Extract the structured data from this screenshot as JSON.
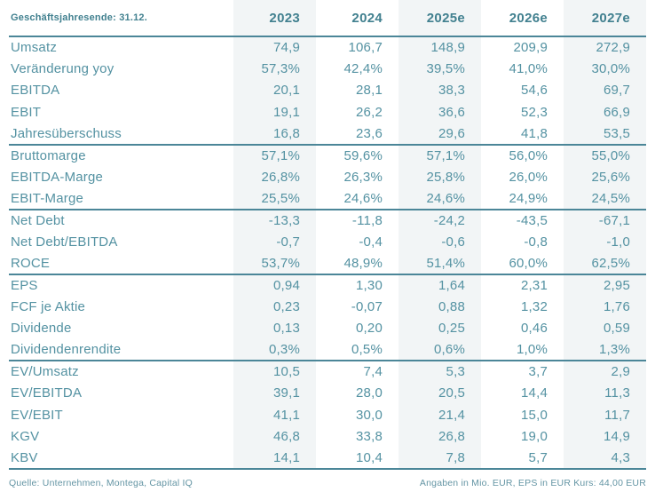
{
  "table": {
    "corner_label": "Geschäftsjahresende: 31.12.",
    "columns": [
      "2023",
      "2024",
      "2025e",
      "2026e",
      "2027e"
    ],
    "shaded_columns": [
      0,
      2,
      4
    ],
    "sections": [
      {
        "rows": [
          {
            "label": "Umsatz",
            "values": [
              "74,9",
              "106,7",
              "148,9",
              "209,9",
              "272,9"
            ]
          },
          {
            "label": "Veränderung yoy",
            "values": [
              "57,3%",
              "42,4%",
              "39,5%",
              "41,0%",
              "30,0%"
            ]
          },
          {
            "label": "EBITDA",
            "values": [
              "20,1",
              "28,1",
              "38,3",
              "54,6",
              "69,7"
            ]
          },
          {
            "label": "EBIT",
            "values": [
              "19,1",
              "26,2",
              "36,6",
              "52,3",
              "66,9"
            ]
          },
          {
            "label": "Jahresüberschuss",
            "values": [
              "16,8",
              "23,6",
              "29,6",
              "41,8",
              "53,5"
            ]
          }
        ]
      },
      {
        "rows": [
          {
            "label": "Bruttomarge",
            "values": [
              "57,1%",
              "59,6%",
              "57,1%",
              "56,0%",
              "55,0%"
            ]
          },
          {
            "label": "EBITDA-Marge",
            "values": [
              "26,8%",
              "26,3%",
              "25,8%",
              "26,0%",
              "25,6%"
            ]
          },
          {
            "label": "EBIT-Marge",
            "values": [
              "25,5%",
              "24,6%",
              "24,6%",
              "24,9%",
              "24,5%"
            ]
          }
        ]
      },
      {
        "rows": [
          {
            "label": "Net Debt",
            "values": [
              "-13,3",
              "-11,8",
              "-24,2",
              "-43,5",
              "-67,1"
            ]
          },
          {
            "label": "Net Debt/EBITDA",
            "values": [
              "-0,7",
              "-0,4",
              "-0,6",
              "-0,8",
              "-1,0"
            ]
          },
          {
            "label": "ROCE",
            "values": [
              "53,7%",
              "48,9%",
              "51,4%",
              "60,0%",
              "62,5%"
            ]
          }
        ]
      },
      {
        "rows": [
          {
            "label": "EPS",
            "values": [
              "0,94",
              "1,30",
              "1,64",
              "2,31",
              "2,95"
            ]
          },
          {
            "label": "FCF je Aktie",
            "values": [
              "0,23",
              "-0,07",
              "0,88",
              "1,32",
              "1,76"
            ]
          },
          {
            "label": "Dividende",
            "values": [
              "0,13",
              "0,20",
              "0,25",
              "0,46",
              "0,59"
            ]
          },
          {
            "label": "Dividendenrendite",
            "values": [
              "0,3%",
              "0,5%",
              "0,6%",
              "1,0%",
              "1,3%"
            ]
          }
        ]
      },
      {
        "rows": [
          {
            "label": "EV/Umsatz",
            "values": [
              "10,5",
              "7,4",
              "5,3",
              "3,7",
              "2,9"
            ]
          },
          {
            "label": "EV/EBITDA",
            "values": [
              "39,1",
              "28,0",
              "20,5",
              "14,4",
              "11,3"
            ]
          },
          {
            "label": "EV/EBIT",
            "values": [
              "41,1",
              "30,0",
              "21,4",
              "15,0",
              "11,7"
            ]
          },
          {
            "label": "KGV",
            "values": [
              "46,8",
              "33,8",
              "26,8",
              "19,0",
              "14,9"
            ]
          },
          {
            "label": "KBV",
            "values": [
              "14,1",
              "10,4",
              "7,8",
              "5,7",
              "4,3"
            ]
          }
        ]
      }
    ]
  },
  "footer": {
    "source": "Quelle: Unternehmen, Montega, Capital IQ",
    "note": "Angaben in Mio. EUR, EPS in EUR Kurs: 44,00 EUR"
  },
  "colors": {
    "accent_teal": "#41808f",
    "body_teal": "#5492a2",
    "rule_teal": "#4b8698",
    "column_band": "#f2f5f6"
  }
}
